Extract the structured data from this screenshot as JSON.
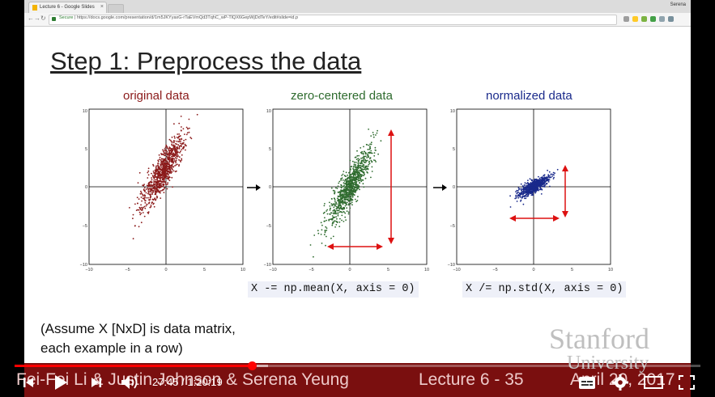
{
  "browser": {
    "tab_title": "Lecture 6 - Google Slides",
    "tab_close": "×",
    "user_name": "Serena",
    "secure_label": "Secure",
    "url": "https://docs.google.com/presentation/d/1m5JKYyaxG-rTaEVmQd3TqhC_wP-TlQX6GepWjDdTeY/edit#slide=id.p"
  },
  "slide": {
    "title": "Step 1: Preprocess the data",
    "panels": [
      {
        "label": "original data",
        "color": "#8b1a1a"
      },
      {
        "label": "zero-centered data",
        "color": "#2e6b2e"
      },
      {
        "label": "normalized data",
        "color": "#1a2a8b"
      }
    ],
    "ticks": {
      "x": [
        "−10",
        "−5",
        "0",
        "5",
        "10"
      ],
      "y": [
        "10",
        "5",
        "0",
        "−5",
        "−10"
      ]
    },
    "code_mean": "X -= np.mean(X, axis = 0)",
    "code_std": "X /= np.std(X, axis = 0)",
    "note_line1": "(Assume X [NxD] is data matrix,",
    "note_line2": "each example in a row)",
    "stanford": "Stanford",
    "university": "University",
    "footer_left": "Fei-Fei Li & Justin Johnson & Serena Yeung",
    "footer_mid": "Lecture 6 - 35",
    "footer_right": "April 20, 2017"
  },
  "player": {
    "current_time": "27:45",
    "duration": "1:20:19",
    "time_display": "27:45 / 1:20:19",
    "progress_fraction": 0.3455,
    "accent": "#ff0000"
  },
  "icons": [
    "previous-icon",
    "play-icon",
    "next-icon",
    "volume-icon",
    "subtitles-icon",
    "settings-icon",
    "theater-icon",
    "fullscreen-icon"
  ]
}
